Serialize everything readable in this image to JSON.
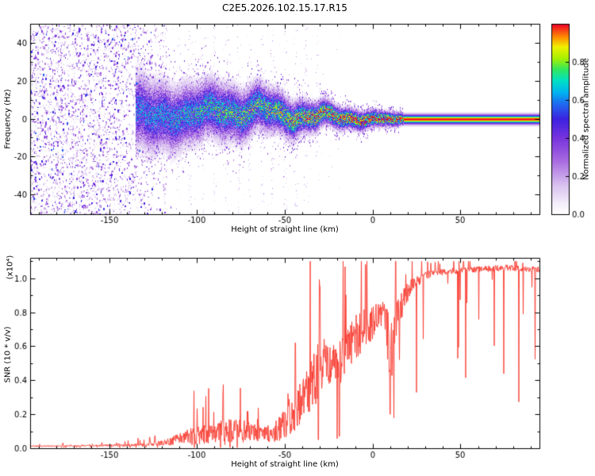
{
  "figure": {
    "title": "C2E5.2026.102.15.17.R15",
    "background": "#ffffff"
  },
  "chart_data": [
    {
      "type": "heatmap",
      "name": "doppler-spectrogram",
      "title": "C2E5.2026.102.15.17.R15",
      "xlabel": "Height of straight line (km)",
      "ylabel": "Frequency (Hz)",
      "xlim": [
        -195,
        95
      ],
      "ylim": [
        -50,
        50
      ],
      "xticks": [
        -150,
        -100,
        -50,
        0,
        50
      ],
      "yticks": [
        40,
        20,
        0,
        -20,
        -40
      ],
      "grid": false,
      "colorbar": {
        "label": "Normalized spectral amplitude",
        "ticks": [
          "0.0",
          "0.2",
          "0.4",
          "0.6",
          "0.8"
        ],
        "tick_values": [
          0,
          0.2,
          0.4,
          0.6,
          0.8
        ],
        "range": [
          0,
          1
        ],
        "position": "right"
      },
      "colormap": [
        [
          0.0,
          "#ffffff"
        ],
        [
          0.06,
          "#f3ecfa"
        ],
        [
          0.15,
          "#d9c2ef"
        ],
        [
          0.28,
          "#a86ae0"
        ],
        [
          0.4,
          "#7733dd"
        ],
        [
          0.5,
          "#3c22e0"
        ],
        [
          0.58,
          "#1f6bf0"
        ],
        [
          0.64,
          "#00b4f0"
        ],
        [
          0.7,
          "#00e0c8"
        ],
        [
          0.76,
          "#30e860"
        ],
        [
          0.82,
          "#a8f000"
        ],
        [
          0.88,
          "#f0f000"
        ],
        [
          0.93,
          "#ff9000"
        ],
        [
          1.0,
          "#f00028"
        ]
      ],
      "noise_region": {
        "x_full_density_until": -148,
        "x_fade_end": -112,
        "amplitude_range": [
          0.07,
          0.55
        ]
      },
      "signal_trace": {
        "x": [
          -135,
          -125,
          -115,
          -105,
          -95,
          -85,
          -75,
          -65,
          -55,
          -45,
          -35,
          -25,
          -15,
          -5,
          5,
          15,
          18,
          95
        ],
        "center_hz": [
          2,
          1,
          2.5,
          2,
          3.5,
          5,
          3,
          5,
          3,
          2,
          1.5,
          1,
          0.5,
          0,
          0,
          0,
          0,
          0
        ],
        "halfwidth_hz": [
          8,
          7.5,
          7,
          6.5,
          6,
          6,
          5.5,
          5,
          4.5,
          4,
          3.2,
          2.6,
          2.2,
          1.9,
          1.6,
          1.4,
          1.1,
          1.1
        ],
        "peak_amplitude": [
          0.55,
          0.58,
          0.6,
          0.62,
          0.65,
          0.68,
          0.7,
          0.72,
          0.75,
          0.8,
          0.85,
          0.9,
          0.95,
          1,
          1,
          1,
          1,
          1
        ]
      },
      "burst_columns_x": [
        -118,
        -111,
        -104,
        -97,
        -90,
        -83,
        -76,
        -70,
        -63,
        -57,
        -50,
        -44,
        -38,
        -31
      ],
      "flat_line_start_x": 18
    },
    {
      "type": "line",
      "name": "snr-profile",
      "xlabel": "Height of straight line (km)",
      "ylabel": "SNR (10 * v/v)",
      "ylabel_scale": "(x10⁴)",
      "xlim": [
        -195,
        95
      ],
      "ylim": [
        0,
        1.12
      ],
      "xticks": [
        -150,
        -100,
        -50,
        0,
        50
      ],
      "yticks": [
        0.0,
        0.2,
        0.4,
        0.6,
        0.8,
        1.0
      ],
      "grid": false,
      "line_color": "#f83b30",
      "envelope": [
        [
          -195,
          0.012,
          0.008
        ],
        [
          -175,
          0.013,
          0.01
        ],
        [
          -155,
          0.015,
          0.012
        ],
        [
          -140,
          0.017,
          0.015
        ],
        [
          -128,
          0.02,
          0.02
        ],
        [
          -120,
          0.028,
          0.035
        ],
        [
          -114,
          0.04,
          0.06
        ],
        [
          -108,
          0.055,
          0.09
        ],
        [
          -102,
          0.065,
          0.12
        ],
        [
          -97,
          0.08,
          0.14
        ],
        [
          -92,
          0.075,
          0.12
        ],
        [
          -87,
          0.085,
          0.15
        ],
        [
          -82,
          0.09,
          0.17
        ],
        [
          -77,
          0.1,
          0.16
        ],
        [
          -72,
          0.095,
          0.14
        ],
        [
          -67,
          0.085,
          0.12
        ],
        [
          -62,
          0.08,
          0.1
        ],
        [
          -57,
          0.085,
          0.12
        ],
        [
          -52,
          0.11,
          0.18
        ],
        [
          -48,
          0.16,
          0.24
        ],
        [
          -44,
          0.22,
          0.28
        ],
        [
          -40,
          0.28,
          0.3
        ],
        [
          -36,
          0.33,
          0.33
        ],
        [
          -32,
          0.4,
          0.4
        ],
        [
          -29,
          0.47,
          0.38
        ],
        [
          -26,
          0.5,
          0.33
        ],
        [
          -23,
          0.52,
          0.3
        ],
        [
          -20,
          0.48,
          0.36
        ],
        [
          -17,
          0.52,
          0.32
        ],
        [
          -14,
          0.57,
          0.3
        ],
        [
          -11,
          0.62,
          0.28
        ],
        [
          -8,
          0.66,
          0.3
        ],
        [
          -5,
          0.7,
          0.32
        ],
        [
          -2,
          0.72,
          0.26
        ],
        [
          1,
          0.74,
          0.22
        ],
        [
          4,
          0.77,
          0.18
        ],
        [
          7,
          0.78,
          0.18
        ],
        [
          9,
          0.62,
          0.4
        ],
        [
          11,
          0.58,
          0.45
        ],
        [
          13,
          0.72,
          0.28
        ],
        [
          16,
          0.82,
          0.2
        ],
        [
          19,
          0.9,
          0.14
        ],
        [
          23,
          0.96,
          0.09
        ],
        [
          28,
          1.0,
          0.06
        ],
        [
          35,
          1.03,
          0.05
        ],
        [
          45,
          1.04,
          0.04
        ],
        [
          60,
          1.05,
          0.04
        ],
        [
          75,
          1.06,
          0.04
        ],
        [
          95,
          1.05,
          0.04
        ]
      ],
      "features": {
        "spikes": [
          [
            -44,
            0.62
          ],
          [
            -30,
            0.95
          ],
          [
            -4,
            1.08
          ]
        ],
        "dips": [
          [
            -31,
            0.05
          ],
          [
            -19,
            0.07
          ],
          [
            10,
            0.2
          ]
        ]
      }
    }
  ]
}
